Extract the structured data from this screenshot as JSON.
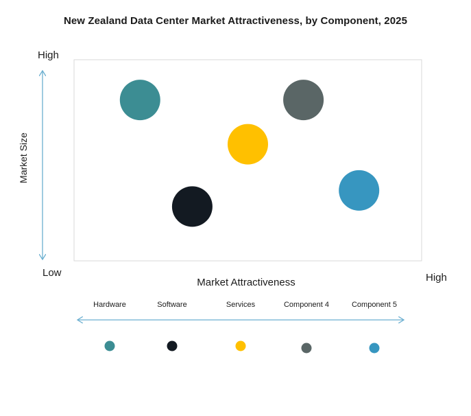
{
  "chart_data": {
    "type": "scatter",
    "title": "New Zealand Data Center Market Attractiveness,  by Component, 2025",
    "xlabel": "Market Attractiveness",
    "ylabel": "Market Size",
    "x_low_label": "Low",
    "x_high_label": "High",
    "y_low_label": "Low",
    "y_high_label": "High",
    "xlim": [
      0,
      10
    ],
    "ylim": [
      0,
      10
    ],
    "grid": false,
    "legend_position": "bottom",
    "series": [
      {
        "name": "Hardware",
        "x": 1.9,
        "y": 8.0,
        "color": "#3C8D93"
      },
      {
        "name": "Software",
        "x": 3.4,
        "y": 2.7,
        "color": "#131A22"
      },
      {
        "name": "Services",
        "x": 5.0,
        "y": 5.8,
        "color": "#FFC000"
      },
      {
        "name": "Component 4",
        "x": 6.6,
        "y": 8.0,
        "color": "#5A6666"
      },
      {
        "name": "Component 5",
        "x": 8.2,
        "y": 3.5,
        "color": "#3796C0"
      }
    ]
  },
  "colors": {
    "axis_arrow": "#6BAFD0",
    "plot_border": "#D9D9D9"
  }
}
